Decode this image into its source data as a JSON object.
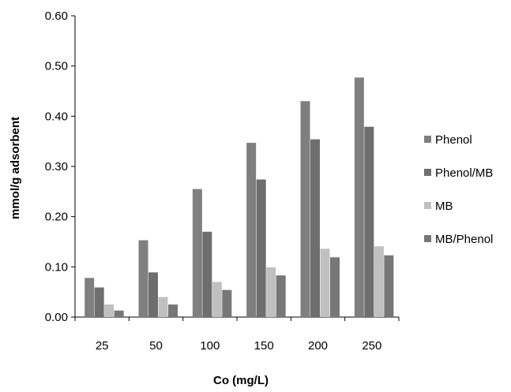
{
  "chart_data": {
    "type": "bar",
    "title": "",
    "xlabel": "Co (mg/L)",
    "ylabel": "mmol/g adsorbent",
    "categories": [
      "25",
      "50",
      "100",
      "150",
      "200",
      "250"
    ],
    "ylim": [
      0,
      0.6
    ],
    "yticks": [
      "0.00",
      "0.10",
      "0.20",
      "0.30",
      "0.40",
      "0.50",
      "0.60"
    ],
    "grid": false,
    "legend_position": "right",
    "series": [
      {
        "name": "Phenol",
        "color": "#7f7f7f",
        "values": [
          0.078,
          0.153,
          0.255,
          0.347,
          0.43,
          0.477
        ]
      },
      {
        "name": "Phenol/MB",
        "color": "#6e6e6e",
        "values": [
          0.059,
          0.089,
          0.17,
          0.274,
          0.354,
          0.379
        ]
      },
      {
        "name": "MB",
        "color": "#c0c0c0",
        "values": [
          0.025,
          0.04,
          0.07,
          0.099,
          0.136,
          0.141
        ]
      },
      {
        "name": "MB/Phenol",
        "color": "#777777",
        "values": [
          0.013,
          0.025,
          0.054,
          0.083,
          0.119,
          0.123
        ]
      }
    ]
  }
}
